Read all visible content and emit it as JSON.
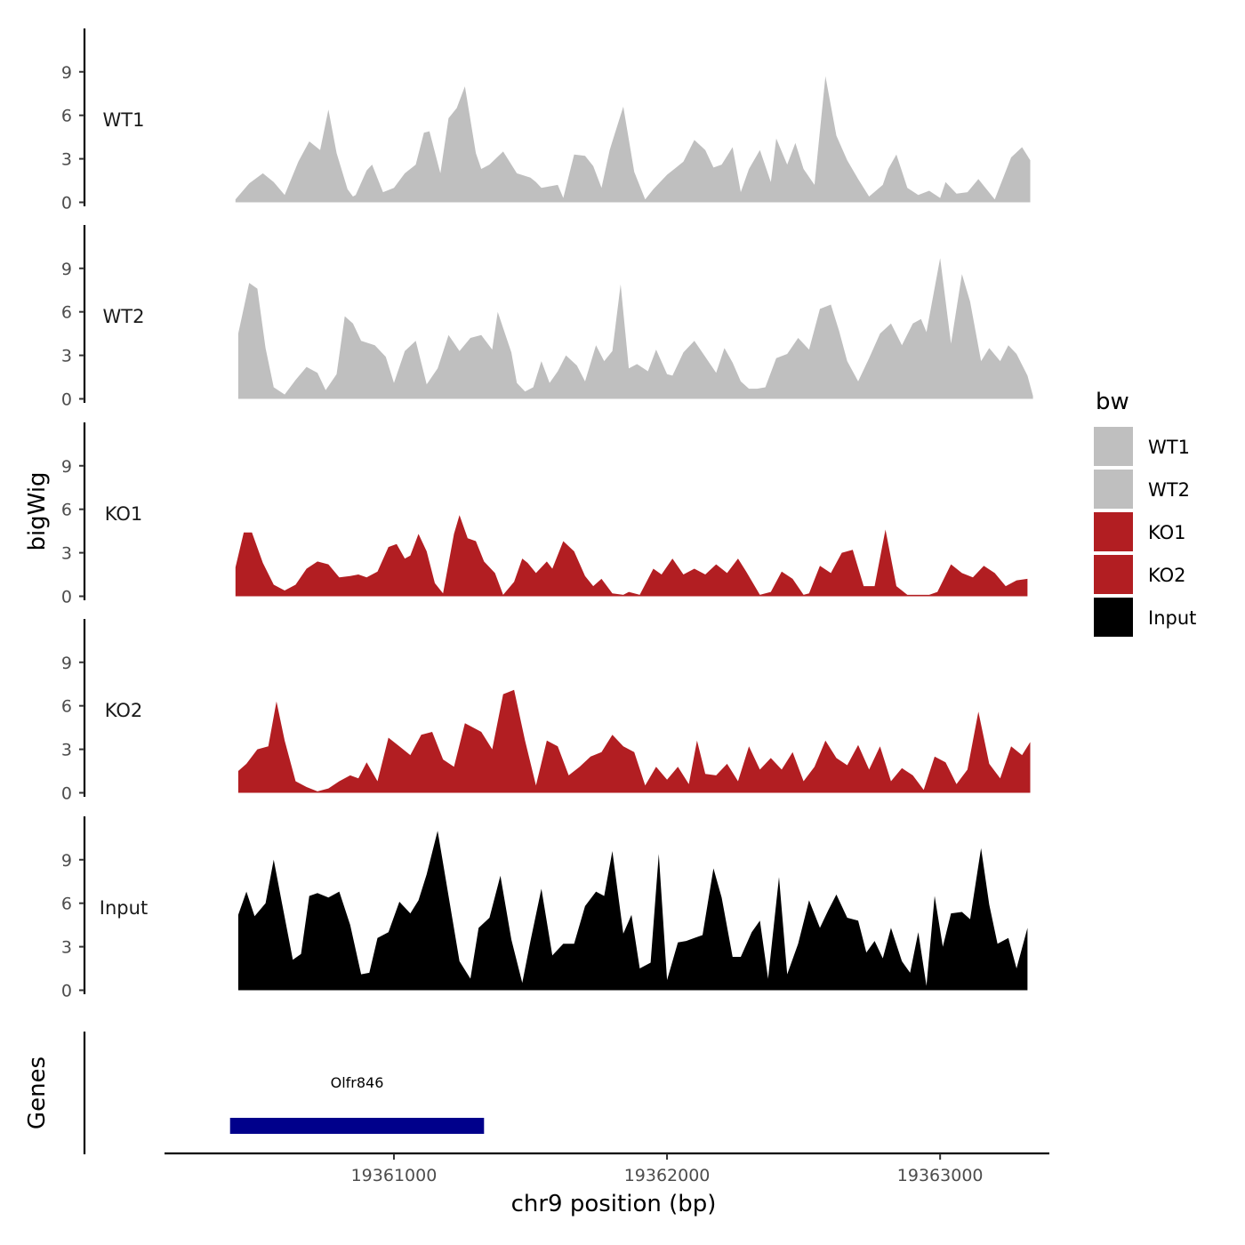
{
  "chart_data": {
    "type": "area",
    "title": "",
    "xlabel": "chr9 position (bp)",
    "ylabel": "bigWig",
    "xlim": [
      19360160,
      19363400
    ],
    "ylim": [
      0,
      11.5
    ],
    "x_ticks": [
      19361000,
      19362000,
      19363000
    ],
    "x_tick_labels": [
      "19361000",
      "19362000",
      "19363000"
    ],
    "y_ticks": [
      0,
      3,
      6,
      9
    ],
    "y_tick_labels": [
      "0",
      "3",
      "6",
      "9"
    ],
    "grid": false,
    "legend": {
      "title": "bw",
      "position": "right",
      "entries": [
        {
          "label": "WT1",
          "color": "#bfbfbf"
        },
        {
          "label": "WT2",
          "color": "#bfbfbf"
        },
        {
          "label": "KO1",
          "color": "#b21e22"
        },
        {
          "label": "KO2",
          "color": "#b21e22"
        },
        {
          "label": "Input",
          "color": "#000000"
        }
      ]
    },
    "series": [
      {
        "name": "WT1",
        "color": "#bfbfbf",
        "x": [
          19360420,
          19360470,
          19360520,
          19360560,
          19360600,
          19360650,
          19360690,
          19360730,
          19360760,
          19360790,
          19360830,
          19360850,
          19360860,
          19360900,
          19360920,
          19360960,
          19361000,
          19361040,
          19361080,
          19361110,
          19361130,
          19361170,
          19361200,
          19361230,
          19361260,
          19361300,
          19361320,
          19361350,
          19361400,
          19361450,
          19361500,
          19361520,
          19361540,
          19361600,
          19361620,
          19361660,
          19361700,
          19361730,
          19361760,
          19361790,
          19361800,
          19361840,
          19361880,
          19361920,
          19361950,
          19362000,
          19362060,
          19362100,
          19362140,
          19362170,
          19362200,
          19362240,
          19362270,
          19362300,
          19362340,
          19362380,
          19362400,
          19362440,
          19362470,
          19362500,
          19362540,
          19362580,
          19362620,
          19362660,
          19362700,
          19362740,
          19362790,
          19362810,
          19362840,
          19362880,
          19362920,
          19362960,
          19363000,
          19363020,
          19363060,
          19363100,
          19363140,
          19363200,
          19363260,
          19363300,
          19363330
        ],
        "values": [
          0.2,
          1.3,
          2.0,
          1.4,
          0.5,
          2.8,
          4.2,
          3.6,
          6.4,
          3.4,
          0.9,
          0.4,
          0.5,
          2.2,
          2.6,
          0.7,
          1.0,
          2.0,
          2.6,
          4.8,
          4.9,
          2.0,
          5.8,
          6.5,
          8.0,
          3.4,
          2.3,
          2.6,
          3.5,
          2.0,
          1.7,
          1.4,
          1.0,
          1.2,
          0.3,
          3.3,
          3.2,
          2.5,
          1.0,
          3.6,
          4.2,
          6.6,
          2.1,
          0.2,
          0.9,
          1.9,
          2.8,
          4.3,
          3.6,
          2.4,
          2.6,
          3.8,
          0.7,
          2.3,
          3.6,
          1.4,
          4.4,
          2.6,
          4.1,
          2.3,
          1.2,
          8.7,
          4.6,
          2.9,
          1.6,
          0.4,
          1.2,
          2.3,
          3.3,
          1.0,
          0.5,
          0.8,
          0.3,
          1.4,
          0.6,
          0.7,
          1.6,
          0.2,
          3.1,
          3.8,
          2.9
        ]
      },
      {
        "name": "WT2",
        "color": "#bfbfbf",
        "x": [
          19360430,
          19360470,
          19360500,
          19360530,
          19360560,
          19360600,
          19360640,
          19360680,
          19360720,
          19360750,
          19360790,
          19360820,
          19360850,
          19360880,
          19360930,
          19360970,
          19361000,
          19361040,
          19361080,
          19361120,
          19361160,
          19361200,
          19361240,
          19361280,
          19361320,
          19361360,
          19361380,
          19361430,
          19361450,
          19361480,
          19361510,
          19361540,
          19361570,
          19361600,
          19361630,
          19361670,
          19361700,
          19361740,
          19361770,
          19361800,
          19361830,
          19361860,
          19361890,
          19361930,
          19361960,
          19362000,
          19362020,
          19362060,
          19362100,
          19362140,
          19362180,
          19362210,
          19362240,
          19362270,
          19362300,
          19362330,
          19362360,
          19362400,
          19362440,
          19362480,
          19362520,
          19362560,
          19362600,
          19362630,
          19362660,
          19362700,
          19362740,
          19362780,
          19362820,
          19362860,
          19362900,
          19362930,
          19362950,
          19363000,
          19363040,
          19363080,
          19363110,
          19363150,
          19363180,
          19363220,
          19363250,
          19363280,
          19363320,
          19363340
        ],
        "values": [
          4.5,
          8.0,
          7.6,
          3.5,
          0.8,
          0.3,
          1.3,
          2.2,
          1.8,
          0.6,
          1.7,
          5.7,
          5.2,
          4.0,
          3.7,
          2.9,
          1.1,
          3.3,
          4.0,
          1.0,
          2.1,
          4.4,
          3.3,
          4.2,
          4.4,
          3.4,
          6.0,
          3.2,
          1.1,
          0.5,
          0.8,
          2.6,
          1.1,
          1.9,
          3.0,
          2.3,
          1.2,
          3.7,
          2.6,
          3.3,
          7.9,
          2.1,
          2.4,
          1.9,
          3.4,
          1.7,
          1.6,
          3.2,
          4.0,
          2.9,
          1.8,
          3.5,
          2.5,
          1.2,
          0.7,
          0.7,
          0.8,
          2.8,
          3.1,
          4.2,
          3.4,
          6.2,
          6.5,
          4.7,
          2.6,
          1.2,
          2.8,
          4.5,
          5.2,
          3.7,
          5.2,
          5.5,
          4.6,
          9.7,
          3.8,
          8.6,
          6.7,
          2.6,
          3.5,
          2.6,
          3.7,
          3.1,
          1.6,
          0.2
        ]
      },
      {
        "name": "KO1",
        "color": "#b21e22",
        "x": [
          19360420,
          19360450,
          19360480,
          19360520,
          19360560,
          19360600,
          19360640,
          19360680,
          19360720,
          19360760,
          19360800,
          19360840,
          19360870,
          19360900,
          19360940,
          19360980,
          19361010,
          19361040,
          19361060,
          19361090,
          19361120,
          19361150,
          19361180,
          19361220,
          19361240,
          19361270,
          19361300,
          19361330,
          19361370,
          19361400,
          19361440,
          19361470,
          19361490,
          19361520,
          19361560,
          19361580,
          19361620,
          19361660,
          19361700,
          19361730,
          19361760,
          19361800,
          19361840,
          19361860,
          19361900,
          19361950,
          19361980,
          19362020,
          19362060,
          19362100,
          19362140,
          19362180,
          19362220,
          19362260,
          19362290,
          19362340,
          19362380,
          19362420,
          19362460,
          19362500,
          19362520,
          19362560,
          19362600,
          19362640,
          19362680,
          19362720,
          19362760,
          19362800,
          19362840,
          19362880,
          19362920,
          19362960,
          19362990,
          19363040,
          19363080,
          19363120,
          19363160,
          19363200,
          19363240,
          19363280,
          19363320
        ],
        "values": [
          2.0,
          4.4,
          4.4,
          2.3,
          0.8,
          0.4,
          0.8,
          1.9,
          2.4,
          2.2,
          1.3,
          1.4,
          1.5,
          1.3,
          1.7,
          3.4,
          3.6,
          2.6,
          2.8,
          4.3,
          3.1,
          0.9,
          0.2,
          4.3,
          5.6,
          4.0,
          3.8,
          2.4,
          1.6,
          0.1,
          1.0,
          2.6,
          2.3,
          1.6,
          2.4,
          1.9,
          3.8,
          3.1,
          1.4,
          0.7,
          1.2,
          0.2,
          0.1,
          0.3,
          0.1,
          1.9,
          1.5,
          2.6,
          1.5,
          1.9,
          1.5,
          2.2,
          1.6,
          2.6,
          1.7,
          0.1,
          0.3,
          1.7,
          1.2,
          0.1,
          0.2,
          2.1,
          1.6,
          3.0,
          3.2,
          0.7,
          0.7,
          4.6,
          0.7,
          0.1,
          0.1,
          0.1,
          0.3,
          2.2,
          1.6,
          1.3,
          2.1,
          1.6,
          0.7,
          1.1,
          1.2
        ]
      },
      {
        "name": "KO2",
        "color": "#b21e22",
        "x": [
          19360430,
          19360460,
          19360500,
          19360540,
          19360570,
          19360600,
          19360640,
          19360680,
          19360720,
          19360760,
          19360800,
          19360840,
          19360870,
          19360900,
          19360940,
          19360980,
          19361020,
          19361060,
          19361100,
          19361140,
          19361180,
          19361220,
          19361260,
          19361280,
          19361320,
          19361360,
          19361400,
          19361440,
          19361480,
          19361520,
          19361560,
          19361600,
          19361640,
          19361680,
          19361720,
          19361760,
          19361800,
          19361840,
          19361880,
          19361920,
          19361960,
          19362000,
          19362040,
          19362080,
          19362110,
          19362140,
          19362180,
          19362220,
          19362260,
          19362300,
          19362340,
          19362380,
          19362420,
          19362460,
          19362500,
          19362540,
          19362580,
          19362620,
          19362660,
          19362700,
          19362740,
          19362780,
          19362820,
          19362860,
          19362900,
          19362940,
          19362980,
          19363020,
          19363060,
          19363100,
          19363140,
          19363180,
          19363220,
          19363260,
          19363300,
          19363330
        ],
        "values": [
          1.5,
          2.0,
          3.0,
          3.2,
          6.3,
          3.6,
          0.8,
          0.4,
          0.1,
          0.3,
          0.8,
          1.2,
          1.0,
          2.1,
          0.8,
          3.8,
          3.2,
          2.6,
          4.0,
          4.2,
          2.3,
          1.8,
          4.8,
          4.6,
          4.2,
          3.0,
          6.8,
          7.1,
          3.6,
          0.5,
          3.6,
          3.2,
          1.2,
          1.8,
          2.5,
          2.8,
          4.0,
          3.2,
          2.8,
          0.5,
          1.8,
          0.9,
          1.8,
          0.6,
          3.6,
          1.3,
          1.2,
          2.0,
          0.8,
          3.2,
          1.6,
          2.4,
          1.6,
          2.8,
          0.8,
          1.8,
          3.6,
          2.4,
          1.9,
          3.3,
          1.6,
          3.2,
          0.8,
          1.7,
          1.2,
          0.2,
          2.5,
          2.1,
          0.6,
          1.6,
          5.6,
          2.0,
          1.0,
          3.2,
          2.6,
          3.5
        ]
      },
      {
        "name": "Input",
        "color": "#000000",
        "x": [
          19360430,
          19360460,
          19360490,
          19360530,
          19360560,
          19360590,
          19360630,
          19360660,
          19360690,
          19360720,
          19360760,
          19360800,
          19360840,
          19360880,
          19360910,
          19360940,
          19360980,
          19361020,
          19361060,
          19361090,
          19361120,
          19361160,
          19361200,
          19361240,
          19361280,
          19361310,
          19361350,
          19361390,
          19361430,
          19361470,
          19361500,
          19361540,
          19361580,
          19361620,
          19361660,
          19361700,
          19361740,
          19361770,
          19361800,
          19361840,
          19361870,
          19361900,
          19361940,
          19361970,
          19362000,
          19362040,
          19362070,
          19362100,
          19362130,
          19362170,
          19362200,
          19362240,
          19362270,
          19362310,
          19362340,
          19362370,
          19362410,
          19362440,
          19362480,
          19362520,
          19362560,
          19362590,
          19362620,
          19362660,
          19362700,
          19362730,
          19362760,
          19362790,
          19362820,
          19362860,
          19362890,
          19362920,
          19362950,
          19362980,
          19363010,
          19363040,
          19363080,
          19363110,
          19363150,
          19363180,
          19363210,
          19363250,
          19363280,
          19363320
        ],
        "values": [
          5.2,
          6.8,
          5.1,
          6.0,
          9.0,
          6.0,
          2.1,
          2.5,
          6.5,
          6.7,
          6.4,
          6.8,
          4.5,
          1.1,
          1.2,
          3.6,
          4.0,
          6.1,
          5.3,
          6.2,
          8.0,
          11.0,
          6.5,
          2.0,
          0.8,
          4.3,
          5.0,
          7.9,
          3.5,
          0.5,
          3.4,
          7.0,
          2.4,
          3.2,
          3.2,
          5.8,
          6.8,
          6.5,
          9.6,
          3.9,
          5.2,
          1.5,
          1.9,
          9.4,
          0.7,
          3.3,
          3.4,
          3.6,
          3.8,
          8.4,
          6.4,
          2.3,
          2.3,
          4.0,
          4.8,
          0.8,
          7.8,
          1.1,
          3.2,
          6.2,
          4.3,
          5.5,
          6.6,
          5.0,
          4.8,
          2.6,
          3.4,
          2.2,
          4.3,
          2.0,
          1.2,
          4.0,
          0.3,
          6.5,
          3.0,
          5.3,
          5.4,
          4.9,
          9.8,
          5.9,
          3.2,
          3.6,
          1.5,
          4.3
        ]
      }
    ],
    "genes": {
      "label": "Genes",
      "items": [
        {
          "name": "Olfr846",
          "start": 19360400,
          "end": 19361330,
          "color": "#00008b"
        }
      ]
    }
  }
}
